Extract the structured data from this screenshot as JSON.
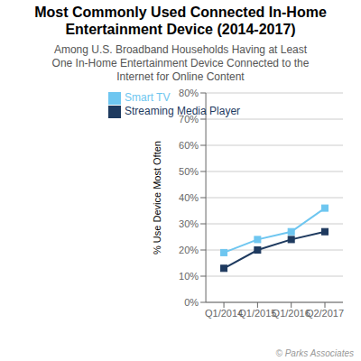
{
  "chart_data": {
    "type": "line",
    "title": "Most Commonly Used Connected In-Home\nEntertainment Device (2014-2017)",
    "subtitle": "Among U.S. Broadband Households Having at Least\nOne In-Home Entertainment Device Connected to the\nInternet for Online Content",
    "ylabel": "% Use Device Most Often",
    "categories": [
      "Q1/2014",
      "Q1/2015",
      "Q1/2016",
      "Q2/2017"
    ],
    "series": [
      {
        "name": "Smart TV",
        "color": "#6ec6f0",
        "marker": "square",
        "values": [
          19,
          24,
          27,
          36
        ]
      },
      {
        "name": "Streaming Media Player",
        "color": "#1e3a5f",
        "marker": "square",
        "values": [
          13,
          20,
          24,
          27
        ]
      }
    ],
    "ylim": [
      0,
      80
    ],
    "yticks": [
      {
        "value": 0,
        "label": "0%"
      },
      {
        "value": 10,
        "label": "10%"
      },
      {
        "value": 20,
        "label": "20%"
      },
      {
        "value": 30,
        "label": "30%"
      },
      {
        "value": 40,
        "label": "40%"
      },
      {
        "value": 50,
        "label": "50%"
      },
      {
        "value": 60,
        "label": "60%"
      },
      {
        "value": 70,
        "label": "70%"
      },
      {
        "value": 80,
        "label": "80%"
      }
    ],
    "grid": true,
    "legend": "upper left",
    "annotations": [
      "© Parks Associates"
    ]
  }
}
